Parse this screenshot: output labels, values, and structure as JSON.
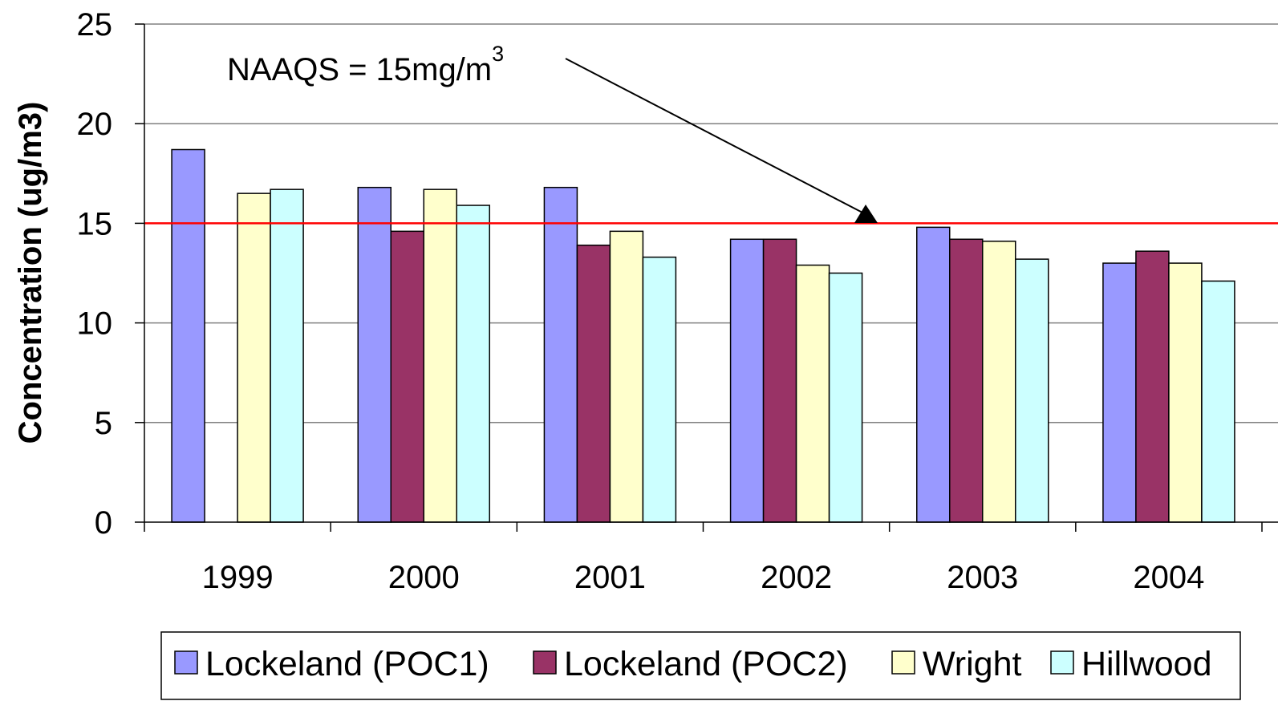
{
  "chart_data": {
    "type": "bar",
    "title": "",
    "xlabel": "",
    "ylabel": "Concentration (ug/m3)",
    "ylim": [
      0,
      25
    ],
    "yticks": [
      0,
      5,
      10,
      15,
      20,
      25
    ],
    "grid": true,
    "categories": [
      "1999",
      "2000",
      "2001",
      "2002",
      "2003",
      "2004"
    ],
    "series": [
      {
        "name": "Lockeland (POC1)",
        "color": "#9999FF",
        "values": [
          18.7,
          16.8,
          16.8,
          14.2,
          14.8,
          13.0
        ]
      },
      {
        "name": "Lockeland (POC2)",
        "color": "#993366",
        "values": [
          null,
          14.6,
          13.9,
          14.2,
          14.2,
          13.6
        ]
      },
      {
        "name": "Wright",
        "color": "#FFFFCC",
        "values": [
          16.5,
          16.7,
          14.6,
          12.9,
          14.1,
          13.0
        ]
      },
      {
        "name": "Hillwood",
        "color": "#CCFFFF",
        "values": [
          16.7,
          15.9,
          13.3,
          12.5,
          13.2,
          12.1
        ]
      }
    ],
    "reference_line": {
      "value": 15,
      "color": "#FF0000"
    },
    "annotation": {
      "text": "NAAQS = 15mg/m",
      "superscript": "3"
    },
    "legend_position": "bottom"
  }
}
